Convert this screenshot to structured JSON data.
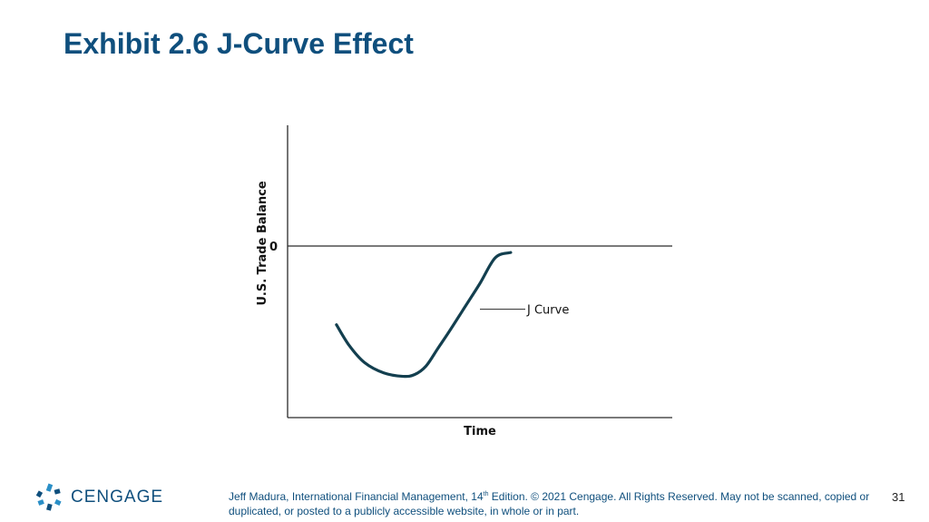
{
  "slide": {
    "title": "Exhibit 2.6 J-Curve Effect",
    "page_number": "31"
  },
  "footer": {
    "logo_text": "CENGAGE",
    "credit_before_sup": "Jeff Madura, International Financial Management, 14",
    "credit_sup": "th",
    "credit_after_sup": " Edition. © 2021 Cengage. All Rights Reserved. May not be scanned, copied or duplicated, or posted to a publicly accessible website, in whole or in part."
  },
  "colors": {
    "title": "#0f4f7d",
    "curve": "#133f4f",
    "logo_accent": "#2a8fc7"
  },
  "chart_data": {
    "type": "line",
    "title": "",
    "xlabel": "Time",
    "ylabel": "U.S. Trade Balance",
    "y_zero_label": "0",
    "xlim": [
      0,
      10
    ],
    "ylim": [
      -10,
      7
    ],
    "grid": false,
    "series": [
      {
        "name": "J Curve",
        "x": [
          1.27,
          1.6,
          2.0,
          2.5,
          3.0,
          3.3,
          3.6,
          3.9,
          4.2,
          4.6,
          5.0,
          5.4,
          5.8
        ],
        "y": [
          -4.6,
          -5.8,
          -6.8,
          -7.4,
          -7.6,
          -7.5,
          -7.0,
          -6.0,
          -5.0,
          -3.6,
          -2.2,
          -0.7,
          -0.4
        ]
      }
    ],
    "annotations": [
      {
        "text": "J Curve",
        "x": 5.0,
        "y": -3.7
      }
    ]
  }
}
